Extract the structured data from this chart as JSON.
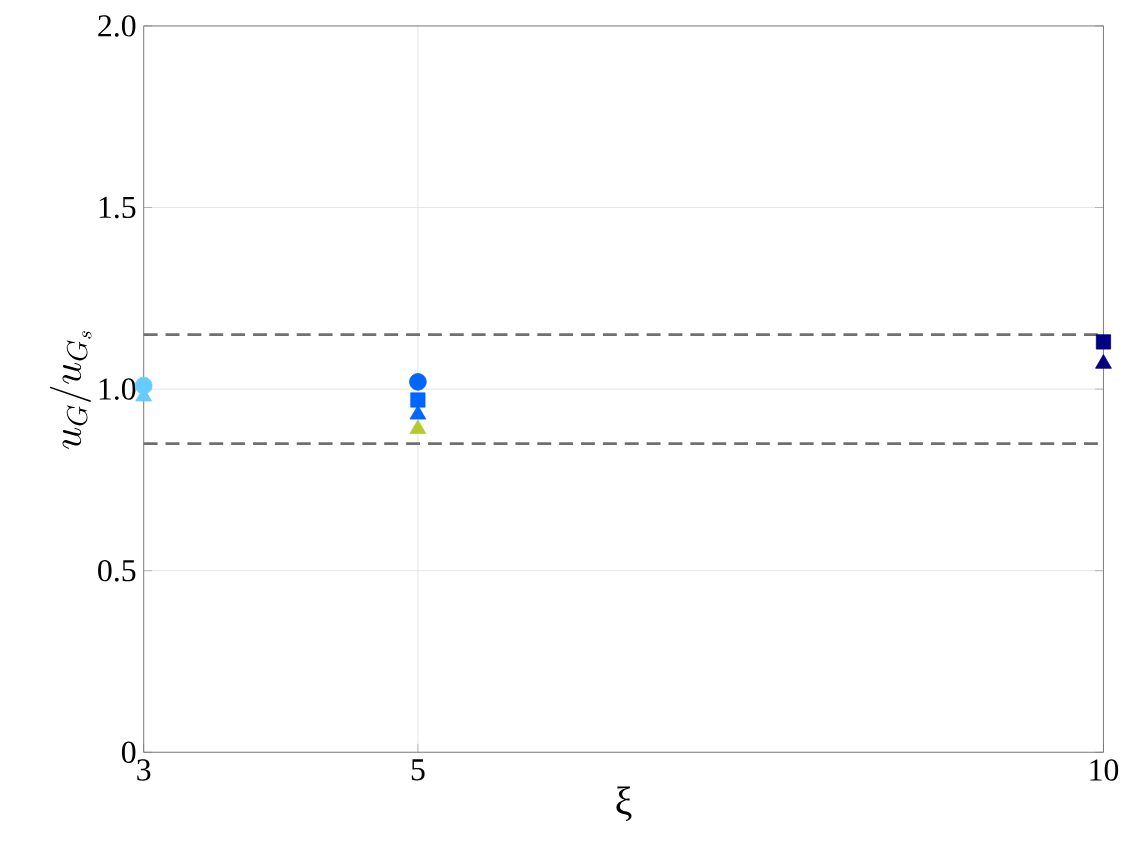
{
  "chart_data": {
    "type": "scatter",
    "xlabel": "ξ",
    "ylabel": "u_G/u_{G_s}",
    "xlim": [
      3,
      10
    ],
    "xticks": [
      3,
      5,
      10
    ],
    "ylim": [
      0,
      2
    ],
    "yticks": [
      0,
      0.5,
      {
        "value": 1,
        "label": "1.0"
      },
      1.5,
      {
        "value": 2,
        "label": "2.0"
      }
    ],
    "grid": true,
    "ref_lines": [
      {
        "axis": "y",
        "value": 1.15,
        "color": "#707070",
        "line_style": "dashed"
      },
      {
        "axis": "y",
        "value": 0.85,
        "color": "#707070",
        "line_style": "dashed"
      }
    ],
    "series": [
      {
        "color": "#66ccff",
        "marker": "circle",
        "x": [
          3
        ],
        "values": [
          1.01
        ]
      },
      {
        "color": "#66ccff",
        "marker": "triangle",
        "x": [
          3
        ],
        "values": [
          0.98
        ]
      },
      {
        "color": "#0066ff",
        "marker": "circle",
        "x": [
          5
        ],
        "values": [
          1.02
        ]
      },
      {
        "color": "#0066ff",
        "marker": "square",
        "x": [
          5
        ],
        "values": [
          0.97
        ]
      },
      {
        "color": "#0066ff",
        "marker": "triangle",
        "x": [
          5
        ],
        "values": [
          0.93
        ]
      },
      {
        "color": "#b5c930",
        "marker": "triangle",
        "x": [
          5
        ],
        "values": [
          0.89
        ]
      },
      {
        "color": "#000080",
        "marker": "square",
        "x": [
          10
        ],
        "values": [
          1.13
        ]
      },
      {
        "color": "#000080",
        "marker": "triangle",
        "x": [
          10
        ],
        "values": [
          1.07
        ]
      }
    ]
  }
}
